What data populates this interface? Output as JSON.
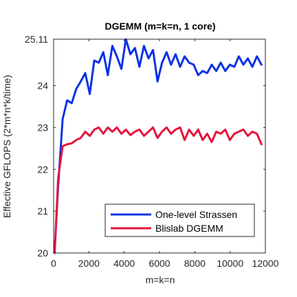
{
  "chart_data": {
    "type": "line",
    "title": "DGEMM (m=k=n, 1 core)",
    "xlabel": "m=k=n",
    "ylabel": "Effective GFLOPS (2*m*n*k/time)",
    "xlim": [
      0,
      12000
    ],
    "ylim": [
      20,
      25.11
    ],
    "xticks": [
      0,
      2000,
      4000,
      6000,
      8000,
      10000,
      12000
    ],
    "xtick_labels": [
      "0",
      "2000",
      "4000",
      "6000",
      "8000",
      "10000",
      "12000"
    ],
    "yticks": [
      20,
      21,
      22,
      23,
      24,
      25.11
    ],
    "ytick_labels": [
      "20",
      "21",
      "22",
      "23",
      "24",
      "25.11"
    ],
    "grid": false,
    "legend_position": "bottom-right",
    "x": [
      64,
      256,
      512,
      768,
      1024,
      1280,
      1536,
      1792,
      2048,
      2304,
      2560,
      2816,
      3072,
      3328,
      3584,
      3840,
      4096,
      4352,
      4608,
      4864,
      5120,
      5376,
      5632,
      5888,
      6144,
      6400,
      6656,
      6912,
      7168,
      7424,
      7680,
      7936,
      8192,
      8448,
      8704,
      8960,
      9216,
      9472,
      9728,
      9984,
      10240,
      10496,
      10752,
      11008,
      11264,
      11520,
      11776
    ],
    "series": [
      {
        "name": "One-level Strassen",
        "color": "#0a32e6",
        "values": [
          20.1,
          21.6,
          23.2,
          23.65,
          23.58,
          23.92,
          24.1,
          24.3,
          23.8,
          24.6,
          24.55,
          24.8,
          24.25,
          24.95,
          24.7,
          24.4,
          25.11,
          24.75,
          24.9,
          24.45,
          24.95,
          24.65,
          24.85,
          24.1,
          24.55,
          24.8,
          24.5,
          24.75,
          24.45,
          24.7,
          24.55,
          24.5,
          24.25,
          24.35,
          24.3,
          24.5,
          24.35,
          24.55,
          24.35,
          24.5,
          24.45,
          24.7,
          24.5,
          24.65,
          24.45,
          24.7,
          24.5
        ]
      },
      {
        "name": "Blislab DGEMM",
        "color": "#e6143c",
        "values": [
          20.0,
          21.8,
          22.55,
          22.6,
          22.62,
          22.7,
          22.75,
          22.9,
          22.8,
          22.95,
          23.0,
          22.85,
          23.0,
          22.9,
          23.0,
          22.85,
          22.95,
          22.82,
          22.9,
          22.95,
          22.8,
          22.9,
          23.0,
          22.75,
          22.9,
          23.0,
          22.85,
          22.95,
          23.0,
          22.7,
          22.95,
          22.8,
          22.95,
          22.7,
          22.85,
          22.65,
          22.9,
          22.85,
          22.95,
          22.7,
          22.85,
          22.9,
          22.95,
          22.8,
          22.9,
          22.85,
          22.6
        ]
      }
    ]
  }
}
